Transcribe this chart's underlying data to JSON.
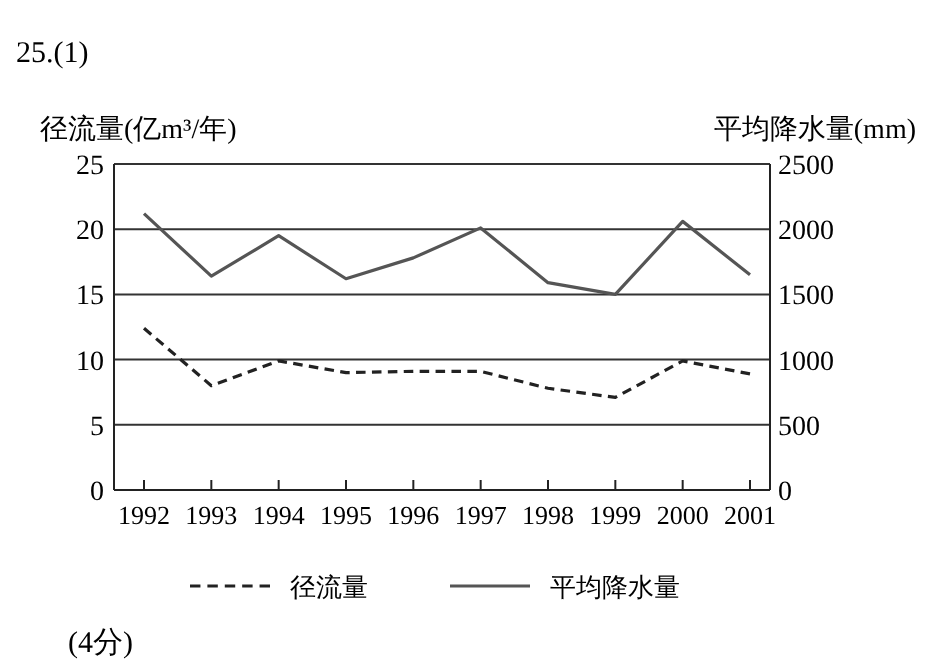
{
  "chart_data": {
    "type": "line",
    "ylabel": "径流量(亿m³/年)",
    "y2label": "平均降水量(mm)",
    "annotations": [
      "25.(1)",
      "(4分)"
    ],
    "categories": [
      "1992",
      "1993",
      "1994",
      "1995",
      "1996",
      "1997",
      "1998",
      "1999",
      "2000",
      "2001"
    ],
    "series": [
      {
        "name": "径流量",
        "color": "#222222",
        "line_style": "dashed",
        "values": [
          12.4,
          8,
          9.9,
          9,
          9.1,
          9.1,
          7.8,
          7.1,
          9.9,
          8.9
        ]
      },
      {
        "name": "平均降水量",
        "color": "#555555",
        "line_style": "solid",
        "axis": "y2",
        "values": [
          2120,
          1640,
          1950,
          1620,
          1780,
          2010,
          1590,
          1500,
          2060,
          1650
        ]
      }
    ],
    "ylim": [
      0,
      25
    ],
    "yticks": [
      0,
      5,
      10,
      15,
      20,
      25
    ],
    "y2lim": [
      0,
      2500
    ],
    "y2ticks": [
      0,
      500,
      1000,
      1500,
      2000,
      2500
    ],
    "grid": "y",
    "legend": "bottom",
    "marker": "none"
  }
}
